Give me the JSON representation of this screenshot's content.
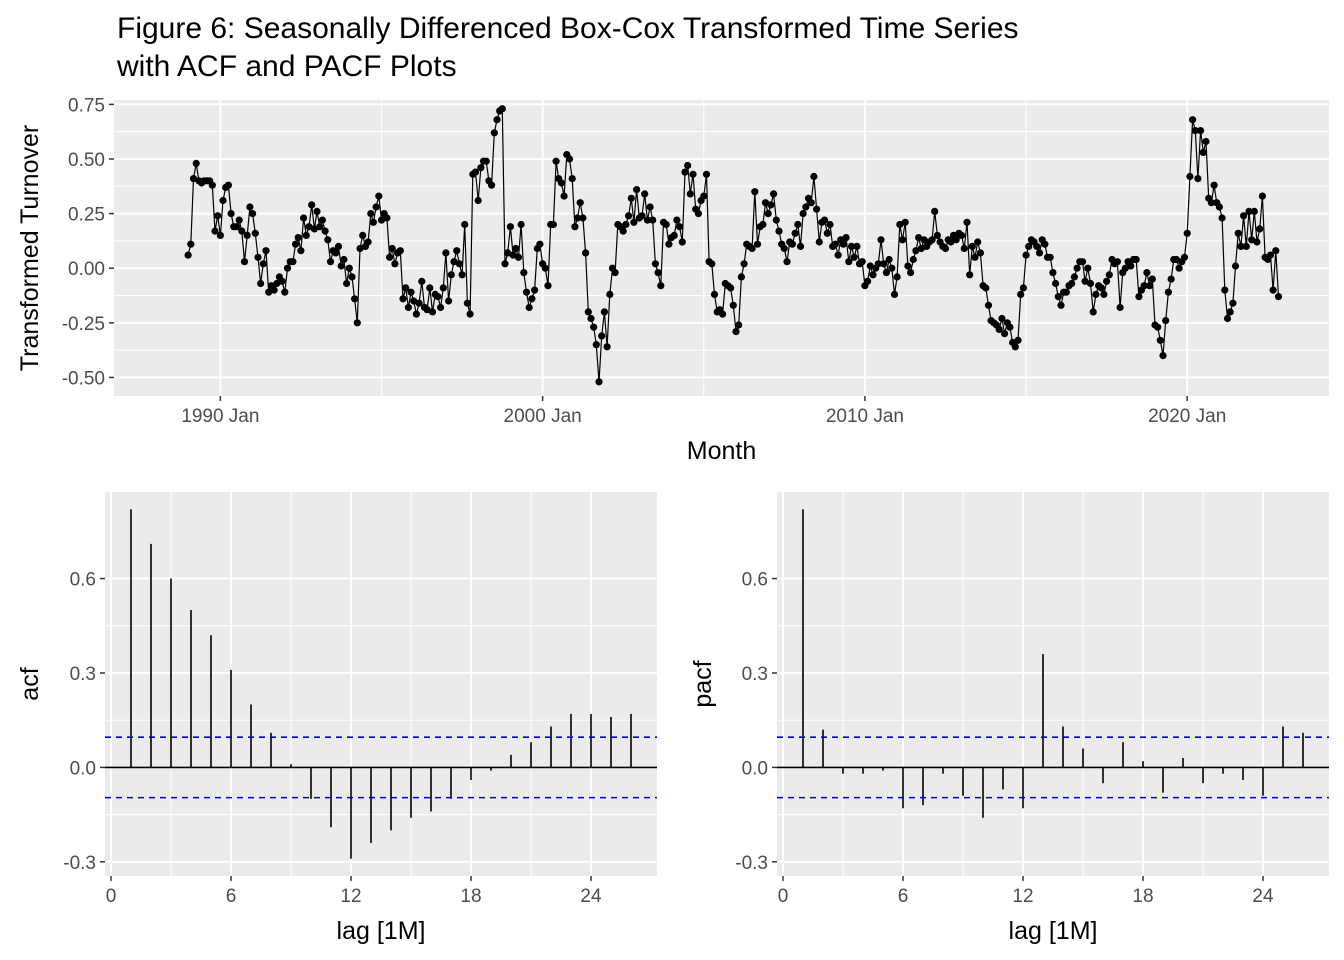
{
  "figure": {
    "title_line1": "Figure 6: Seasonally Differenced Box-Cox Transformed Time Series",
    "title_line2": "with ACF and PACF Plots"
  },
  "chart_data": [
    {
      "type": "line",
      "name": "transformed-series",
      "xlabel": "Month",
      "ylabel": "Transformed Turnover",
      "xlim": [
        1986.7,
        2024.4
      ],
      "ylim": [
        -0.585,
        0.77
      ],
      "x_ticks": [
        1990,
        2000,
        2010,
        2020
      ],
      "x_tick_labels": [
        "1990 Jan",
        "2000 Jan",
        "2010 Jan",
        "2020 Jan"
      ],
      "y_ticks": [
        -0.5,
        -0.25,
        0.0,
        0.25,
        0.5,
        0.75
      ],
      "y_tick_labels": [
        "-0.50",
        "-0.25",
        "0.00",
        "0.25",
        "0.50",
        "0.75"
      ],
      "x_start": 1989.0,
      "x_step": 0.08333333,
      "values": [
        0.06,
        0.11,
        0.41,
        0.48,
        0.4,
        0.39,
        0.4,
        0.4,
        0.4,
        0.38,
        0.17,
        0.24,
        0.15,
        0.31,
        0.37,
        0.38,
        0.25,
        0.19,
        0.19,
        0.22,
        0.17,
        0.03,
        0.15,
        0.28,
        0.25,
        0.16,
        0.05,
        -0.07,
        0.02,
        0.08,
        -0.11,
        -0.08,
        -0.1,
        -0.07,
        -0.04,
        -0.06,
        -0.11,
        0.0,
        0.03,
        0.03,
        0.11,
        0.14,
        0.08,
        0.23,
        0.15,
        0.19,
        0.29,
        0.18,
        0.26,
        0.19,
        0.22,
        0.17,
        0.13,
        0.03,
        0.08,
        0.07,
        0.1,
        0.01,
        0.04,
        -0.07,
        0.0,
        -0.04,
        -0.14,
        -0.25,
        0.09,
        0.15,
        0.1,
        0.12,
        0.25,
        0.21,
        0.28,
        0.33,
        0.22,
        0.25,
        0.23,
        0.05,
        0.09,
        0.02,
        0.07,
        0.08,
        -0.14,
        -0.09,
        -0.18,
        -0.11,
        -0.15,
        -0.21,
        -0.16,
        -0.06,
        -0.18,
        -0.19,
        -0.09,
        -0.2,
        -0.12,
        -0.13,
        -0.18,
        -0.09,
        0.07,
        -0.15,
        -0.03,
        0.03,
        0.08,
        0.02,
        -0.03,
        0.2,
        -0.16,
        -0.21,
        0.43,
        0.44,
        0.31,
        0.46,
        0.49,
        0.49,
        0.4,
        0.38,
        0.62,
        0.68,
        0.72,
        0.73,
        0.02,
        0.07,
        0.19,
        0.06,
        0.09,
        0.05,
        0.2,
        -0.02,
        -0.11,
        -0.18,
        -0.14,
        -0.1,
        0.09,
        0.11,
        0.02,
        0.0,
        -0.08,
        0.2,
        0.2,
        0.49,
        0.41,
        0.39,
        0.33,
        0.52,
        0.5,
        0.41,
        0.19,
        0.23,
        0.3,
        0.23,
        0.07,
        -0.2,
        -0.23,
        -0.27,
        -0.35,
        -0.52,
        -0.31,
        -0.2,
        -0.36,
        -0.12,
        0.0,
        -0.02,
        0.2,
        0.19,
        0.17,
        0.2,
        0.24,
        0.32,
        0.21,
        0.36,
        0.23,
        0.24,
        0.34,
        0.22,
        0.28,
        0.22,
        0.02,
        -0.02,
        -0.08,
        0.21,
        0.2,
        0.11,
        0.14,
        0.15,
        0.22,
        0.19,
        0.12,
        0.44,
        0.47,
        0.34,
        0.43,
        0.27,
        0.25,
        0.31,
        0.33,
        0.43,
        0.03,
        0.02,
        -0.12,
        -0.2,
        -0.19,
        -0.21,
        -0.07,
        -0.08,
        -0.09,
        -0.17,
        -0.29,
        -0.26,
        -0.04,
        0.02,
        0.11,
        0.1,
        0.09,
        0.35,
        0.11,
        0.19,
        0.2,
        0.3,
        0.25,
        0.29,
        0.34,
        0.22,
        0.17,
        0.11,
        0.09,
        0.03,
        0.12,
        0.11,
        0.16,
        0.2,
        0.1,
        0.25,
        0.28,
        0.32,
        0.3,
        0.42,
        0.27,
        0.12,
        0.21,
        0.22,
        0.16,
        0.2,
        0.1,
        0.11,
        0.06,
        0.13,
        0.11,
        0.14,
        0.03,
        0.1,
        0.05,
        0.1,
        0.02,
        0.03,
        -0.08,
        -0.06,
        0.01,
        -0.03,
        0.0,
        0.02,
        0.13,
        0.02,
        -0.02,
        0.04,
        0.0,
        -0.12,
        -0.04,
        0.2,
        0.13,
        0.21,
        0.01,
        -0.02,
        0.04,
        0.08,
        0.14,
        0.09,
        0.13,
        0.1,
        0.12,
        0.13,
        0.26,
        0.15,
        0.12,
        0.1,
        0.09,
        0.13,
        0.12,
        0.15,
        0.13,
        0.16,
        0.15,
        0.09,
        0.21,
        -0.03,
        0.1,
        0.05,
        0.12,
        0.07,
        -0.08,
        -0.09,
        -0.17,
        -0.24,
        -0.25,
        -0.26,
        -0.28,
        -0.23,
        -0.3,
        -0.25,
        -0.27,
        -0.34,
        -0.36,
        -0.33,
        -0.12,
        -0.09,
        0.06,
        0.1,
        0.13,
        0.12,
        0.1,
        0.07,
        0.13,
        0.11,
        0.05,
        0.05,
        -0.02,
        -0.07,
        -0.13,
        -0.17,
        -0.11,
        -0.11,
        -0.08,
        -0.07,
        -0.04,
        0.0,
        0.03,
        0.03,
        -0.06,
        0.0,
        -0.07,
        -0.2,
        -0.12,
        -0.08,
        -0.09,
        -0.12,
        -0.06,
        -0.03,
        0.04,
        0.02,
        0.03,
        -0.18,
        -0.02,
        0.0,
        0.03,
        0.01,
        0.04,
        0.04,
        -0.13,
        -0.1,
        -0.08,
        -0.02,
        -0.08,
        -0.05,
        -0.26,
        -0.27,
        -0.33,
        -0.4,
        -0.24,
        -0.11,
        -0.05,
        0.04,
        0.04,
        0.0,
        0.03,
        0.05,
        0.16,
        0.42,
        0.68,
        0.63,
        0.41,
        0.63,
        0.53,
        0.58,
        0.32,
        0.3,
        0.38,
        0.3,
        0.28,
        0.23,
        -0.1,
        -0.23,
        -0.2,
        -0.16,
        0.01,
        0.16,
        0.1,
        0.24,
        0.1,
        0.26,
        0.13,
        0.26,
        0.12,
        0.18,
        0.33,
        0.05,
        0.04,
        0.06,
        -0.1,
        0.08,
        -0.13
      ]
    },
    {
      "type": "bar",
      "name": "acf",
      "xlabel": "lag [1M]",
      "ylabel": "acf",
      "xlim": [
        -0.3,
        27.3
      ],
      "ylim": [
        -0.345,
        0.875
      ],
      "x_ticks": [
        0,
        6,
        12,
        18,
        24
      ],
      "x_tick_labels": [
        "0",
        "6",
        "12",
        "18",
        "24"
      ],
      "y_ticks": [
        -0.3,
        0.0,
        0.3,
        0.6
      ],
      "y_tick_labels": [
        "-0.3",
        "0.0",
        "0.3",
        "0.6"
      ],
      "ci": 0.096,
      "lags": [
        1,
        2,
        3,
        4,
        5,
        6,
        7,
        8,
        9,
        10,
        11,
        12,
        13,
        14,
        15,
        16,
        17,
        18,
        19,
        20,
        21,
        22,
        23,
        24,
        25,
        26
      ],
      "values": [
        0.82,
        0.71,
        0.6,
        0.5,
        0.42,
        0.31,
        0.2,
        0.11,
        0.01,
        -0.1,
        -0.19,
        -0.29,
        -0.24,
        -0.2,
        -0.16,
        -0.14,
        -0.1,
        -0.04,
        -0.01,
        0.04,
        0.08,
        0.13,
        0.17,
        0.17,
        0.16,
        0.17
      ]
    },
    {
      "type": "bar",
      "name": "pacf",
      "xlabel": "lag [1M]",
      "ylabel": "pacf",
      "xlim": [
        -0.3,
        27.3
      ],
      "ylim": [
        -0.345,
        0.875
      ],
      "x_ticks": [
        0,
        6,
        12,
        18,
        24
      ],
      "x_tick_labels": [
        "0",
        "6",
        "12",
        "18",
        "24"
      ],
      "y_ticks": [
        -0.3,
        0.0,
        0.3,
        0.6
      ],
      "y_tick_labels": [
        "-0.3",
        "0.0",
        "0.3",
        "0.6"
      ],
      "ci": 0.096,
      "lags": [
        1,
        2,
        3,
        4,
        5,
        6,
        7,
        8,
        9,
        10,
        11,
        12,
        13,
        14,
        15,
        16,
        17,
        18,
        19,
        20,
        21,
        22,
        23,
        24,
        25,
        26
      ],
      "values": [
        0.82,
        0.12,
        -0.02,
        -0.02,
        -0.01,
        -0.13,
        -0.12,
        -0.02,
        -0.09,
        -0.16,
        -0.07,
        -0.13,
        0.36,
        0.13,
        0.06,
        -0.05,
        0.08,
        0.02,
        -0.08,
        0.03,
        -0.05,
        -0.02,
        -0.04,
        -0.09,
        0.13,
        0.11
      ]
    }
  ]
}
